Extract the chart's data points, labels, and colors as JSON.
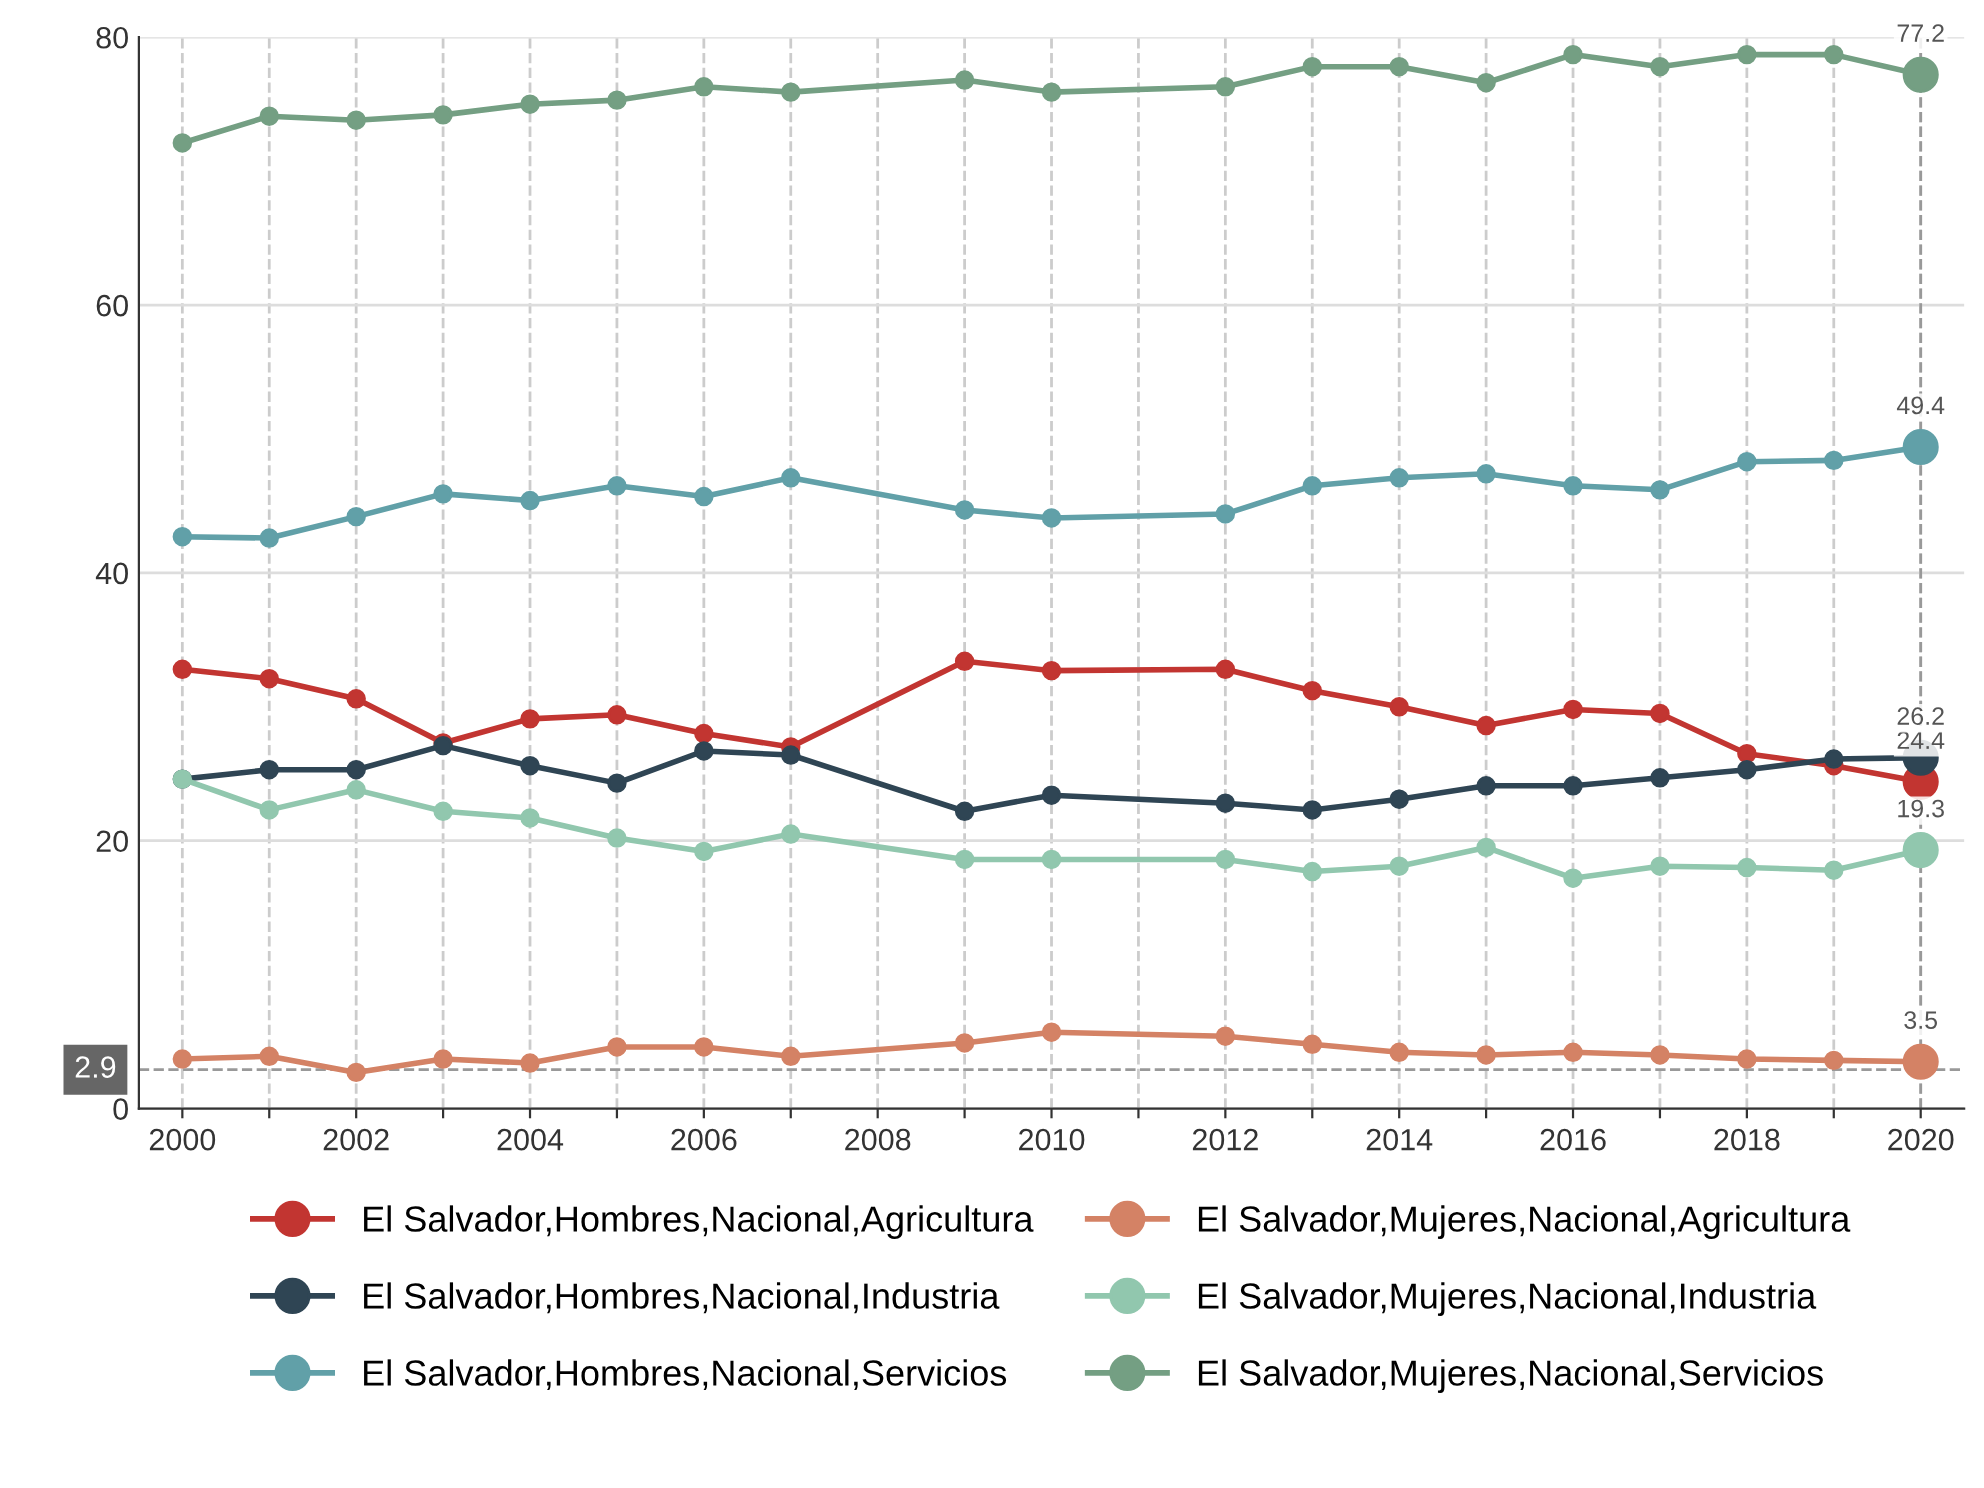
{
  "chart_data": {
    "type": "line",
    "x": [
      2000,
      2001,
      2002,
      2003,
      2004,
      2005,
      2006,
      2007,
      2009,
      2010,
      2012,
      2013,
      2014,
      2015,
      2016,
      2017,
      2018,
      2019,
      2020
    ],
    "series": [
      {
        "name": "El Salvador,Hombres,Nacional,Agricultura",
        "color": "#c23531",
        "values": [
          32.8,
          32.1,
          30.6,
          27.3,
          29.1,
          29.4,
          28.0,
          27.0,
          33.4,
          32.7,
          32.8,
          31.2,
          30.0,
          28.6,
          29.8,
          29.5,
          26.5,
          25.6,
          24.4
        ],
        "value_labels": [
          null,
          null,
          null,
          null,
          null,
          null,
          null,
          null,
          null,
          null,
          null,
          null,
          null,
          null,
          null,
          null,
          null,
          null,
          "24.4"
        ]
      },
      {
        "name": "El Salvador,Hombres,Nacional,Industria",
        "color": "#2f4554",
        "values": [
          24.6,
          25.3,
          25.3,
          27.1,
          25.6,
          24.3,
          26.7,
          26.4,
          22.2,
          23.4,
          22.8,
          22.3,
          23.1,
          24.1,
          24.1,
          24.7,
          25.3,
          26.1,
          26.2
        ],
        "value_labels": [
          null,
          null,
          null,
          null,
          null,
          null,
          null,
          null,
          null,
          null,
          null,
          null,
          null,
          null,
          null,
          null,
          null,
          null,
          "26.2"
        ]
      },
      {
        "name": "El Salvador,Hombres,Nacional,Servicios",
        "color": "#61a0a8",
        "values": [
          42.7,
          42.6,
          44.2,
          45.9,
          45.4,
          46.5,
          45.7,
          47.1,
          44.7,
          44.1,
          44.4,
          46.5,
          47.1,
          47.4,
          46.5,
          46.2,
          48.3,
          48.4,
          49.4
        ],
        "value_labels": [
          null,
          null,
          null,
          null,
          null,
          null,
          null,
          null,
          null,
          null,
          null,
          null,
          null,
          null,
          null,
          null,
          null,
          null,
          "49.4"
        ]
      },
      {
        "name": "El Salvador,Mujeres,Nacional,Agricultura",
        "color": "#d48265",
        "values": [
          3.7,
          3.9,
          2.7,
          3.7,
          3.4,
          4.6,
          4.6,
          3.9,
          4.9,
          5.7,
          5.4,
          4.8,
          4.2,
          4.0,
          4.2,
          4.0,
          3.7,
          3.6,
          3.5
        ],
        "value_labels": [
          null,
          null,
          null,
          null,
          null,
          null,
          null,
          null,
          null,
          null,
          null,
          null,
          null,
          null,
          null,
          null,
          null,
          null,
          "3.5"
        ]
      },
      {
        "name": "El Salvador,Mujeres,Nacional,Industria",
        "color": "#91c7ae",
        "values": [
          24.6,
          22.3,
          23.8,
          22.2,
          21.7,
          20.2,
          19.2,
          20.5,
          18.6,
          18.6,
          18.6,
          17.7,
          18.1,
          19.5,
          17.2,
          18.1,
          18.0,
          17.8,
          19.3
        ],
        "value_labels": [
          null,
          null,
          null,
          null,
          null,
          null,
          null,
          null,
          null,
          null,
          null,
          null,
          null,
          null,
          null,
          null,
          null,
          null,
          "19.3"
        ]
      },
      {
        "name": "El Salvador,Mujeres,Nacional,Servicios",
        "color": "#749f83",
        "values": [
          72.1,
          74.1,
          73.8,
          74.2,
          75.0,
          75.3,
          76.3,
          75.9,
          76.8,
          75.9,
          76.3,
          77.8,
          77.8,
          76.6,
          78.7,
          77.8,
          78.7,
          78.7,
          77.2
        ],
        "value_labels": [
          null,
          null,
          null,
          null,
          null,
          null,
          null,
          null,
          null,
          null,
          null,
          null,
          null,
          null,
          null,
          null,
          null,
          null,
          "77.2"
        ]
      }
    ],
    "xlim": [
      1999.5,
      2020.5
    ],
    "xticks": [
      2000,
      {
        "value": 2001,
        "label": null
      },
      2002,
      {
        "value": 2003,
        "label": null
      },
      2004,
      {
        "value": 2005,
        "label": null
      },
      2006,
      {
        "value": 2007,
        "label": null
      },
      2008,
      {
        "value": 2009,
        "label": null
      },
      2010,
      {
        "value": 2011,
        "label": null
      },
      2012,
      {
        "value": 2013,
        "label": null
      },
      2014,
      {
        "value": 2015,
        "label": null
      },
      2016,
      {
        "value": 2017,
        "label": null
      },
      2018,
      {
        "value": 2019,
        "label": null
      },
      2020
    ],
    "ylim": [
      0,
      80
    ],
    "yticks": [
      0,
      20,
      40,
      60,
      80
    ],
    "ref_lines": [
      {
        "axis": "y",
        "value": 2.9,
        "label": "2.9",
        "color": "#999999",
        "line_style": "dashed"
      },
      {
        "axis": "x",
        "value": 2020,
        "label": null,
        "color": "#999999",
        "line_style": "dashed"
      }
    ],
    "grid": true,
    "legend": "bottom",
    "marker": "circle",
    "line_style": "solid"
  }
}
